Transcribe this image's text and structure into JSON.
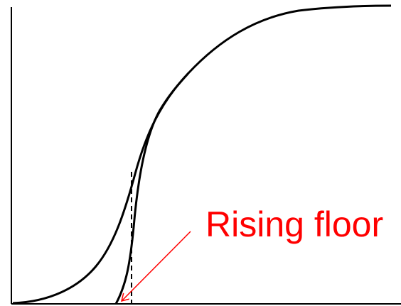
{
  "annotation": "Rising floor"
}
